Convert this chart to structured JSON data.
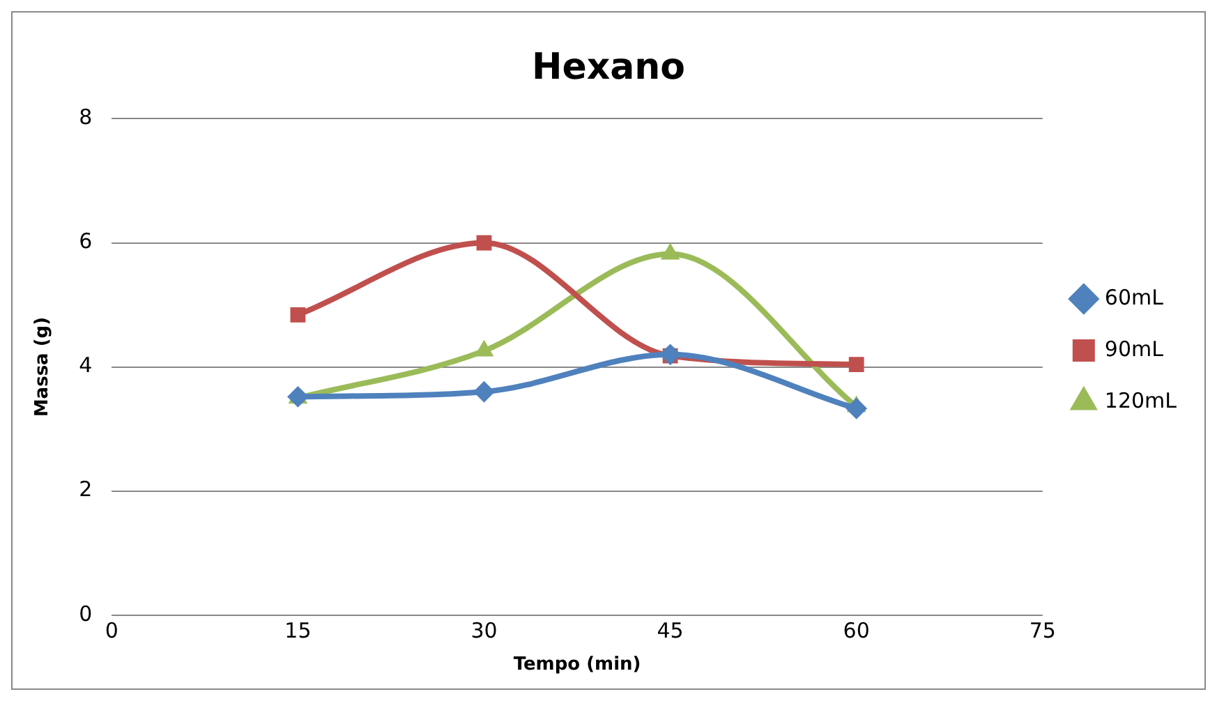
{
  "chart_data": {
    "type": "line",
    "title": "Hexano",
    "xlabel": "Tempo (min)",
    "ylabel": "Massa (g)",
    "x": [
      15,
      30,
      45,
      60
    ],
    "series": [
      {
        "name": "60mL",
        "color": "#4f81bd",
        "marker": "diamond",
        "values": [
          3.52,
          3.6,
          4.2,
          3.33
        ]
      },
      {
        "name": "90mL",
        "color": "#c0504d",
        "marker": "square",
        "values": [
          4.84,
          6.0,
          4.18,
          4.04
        ]
      },
      {
        "name": "120mL",
        "color": "#9bbb59",
        "marker": "triangle",
        "values": [
          3.5,
          4.26,
          5.82,
          3.36
        ]
      }
    ],
    "xlim": [
      0,
      75
    ],
    "xticks": [
      0,
      15,
      30,
      45,
      60,
      75
    ],
    "ylim": [
      0,
      8
    ],
    "yticks": [
      0,
      2,
      4,
      6,
      8
    ],
    "grid": "y",
    "legend": "right",
    "line_style": "solid"
  }
}
